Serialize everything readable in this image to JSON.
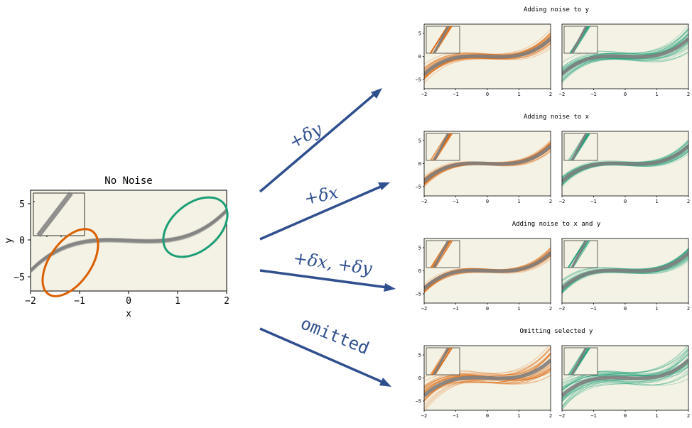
{
  "main": {
    "title": "No Noise",
    "xlabel": "x",
    "ylabel": "y",
    "xticks": [
      "−2",
      "−1",
      "0",
      "1",
      "2"
    ],
    "yticks": [
      "5",
      "0",
      "−5"
    ]
  },
  "arrows": [
    {
      "label": "+δy"
    },
    {
      "label": "+δx"
    },
    {
      "label": "+δx, +δy"
    },
    {
      "label": "omitted"
    }
  ],
  "rows": [
    {
      "title": "Adding noise to y"
    },
    {
      "title": "Adding noise to x"
    },
    {
      "title": "Adding noise to x and y"
    },
    {
      "title": "Omitting selected y"
    }
  ],
  "small_ticks": {
    "x": [
      "−2",
      "−1",
      "0",
      "1",
      "2"
    ],
    "y": [
      "5",
      "0",
      "−5"
    ]
  },
  "colors": {
    "panel_bg": "#f4f2e4",
    "orange": "#d95f02",
    "green": "#1b9e77",
    "gray": "#808080",
    "arrow": "#2f4f8f"
  }
}
